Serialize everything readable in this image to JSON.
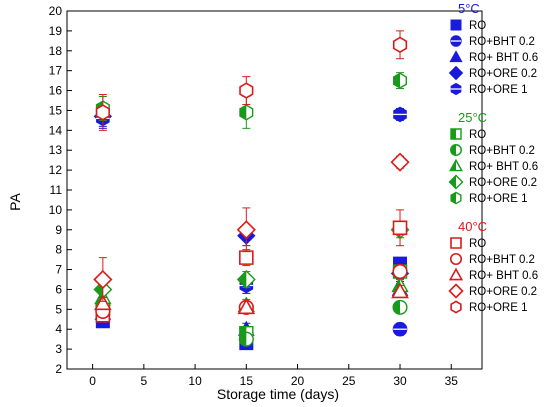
{
  "chart_data": {
    "type": "scatter",
    "xlabel": "Storage time (days)",
    "ylabel": "PA",
    "xlim": [
      -2.5,
      38
    ],
    "ylim": [
      2,
      20
    ],
    "xticks": [
      "0",
      "5",
      "10",
      "15",
      "20",
      "25",
      "30",
      "35"
    ],
    "xtick_values": [
      0,
      5,
      10,
      15,
      20,
      25,
      30,
      35
    ],
    "yticks": [
      "2",
      "3",
      "4",
      "5",
      "6",
      "7",
      "8",
      "9",
      "10",
      "11",
      "12",
      "13",
      "14",
      "15",
      "16",
      "17",
      "18",
      "19",
      "20"
    ],
    "ytick_values": [
      2,
      3,
      4,
      5,
      6,
      7,
      8,
      9,
      10,
      11,
      12,
      13,
      14,
      15,
      16,
      17,
      18,
      19,
      20
    ],
    "groups": [
      {
        "title": "5°C",
        "color": "#1a1adc",
        "style": "solid",
        "series": [
          {
            "name": "RO",
            "marker": "square",
            "x": [
              1,
              15,
              30
            ],
            "y": [
              4.4,
              3.3,
              7.3
            ],
            "err": [
              0.25,
              0.3,
              0.3
            ]
          },
          {
            "name": "RO+BHT 0.2",
            "marker": "circle",
            "x": [
              1,
              15,
              30
            ],
            "y": [
              4.7,
              3.5,
              4.0
            ],
            "err": [
              0.3,
              0.3,
              0.3
            ]
          },
          {
            "name": "RO+ BHT 0.6",
            "marker": "triangle",
            "x": [
              1,
              15,
              30
            ],
            "y": [
              4.8,
              4.0,
              6.0
            ],
            "err": [
              0.3,
              0.3,
              0.3
            ]
          },
          {
            "name": "RO+ORE 0.2",
            "marker": "diamond",
            "x": [
              1,
              15,
              30
            ],
            "y": [
              14.7,
              8.7,
              6.8
            ],
            "err": [
              0.5,
              0.5,
              0.4
            ]
          },
          {
            "name": "RO+ORE 1",
            "marker": "hexagon",
            "x": [
              1,
              15,
              30
            ],
            "y": [
              14.6,
              6.2,
              14.8
            ],
            "err": [
              0.5,
              0.4,
              0.3
            ]
          }
        ]
      },
      {
        "title": "25°C",
        "color": "#1a9a1a",
        "style": "half",
        "series": [
          {
            "name": "RO",
            "marker": "square",
            "x": [
              1,
              15,
              30
            ],
            "y": [
              5.0,
              3.8,
              6.9
            ],
            "err": [
              0.3,
              0.3,
              0.3
            ]
          },
          {
            "name": "RO+BHT 0.2",
            "marker": "circle",
            "x": [
              1,
              15,
              30
            ],
            "y": [
              5.2,
              3.5,
              5.1
            ],
            "err": [
              0.3,
              0.3,
              0.3
            ]
          },
          {
            "name": "RO+ BHT 0.6",
            "marker": "triangle",
            "x": [
              1,
              15,
              30
            ],
            "y": [
              5.6,
              5.2,
              6.2
            ],
            "err": [
              0.3,
              0.3,
              0.3
            ]
          },
          {
            "name": "RO+ORE 0.2",
            "marker": "diamond",
            "x": [
              1,
              15,
              30
            ],
            "y": [
              6.0,
              6.5,
              9.0
            ],
            "err": [
              0.4,
              0.4,
              0.4
            ]
          },
          {
            "name": "RO+ORE 1",
            "marker": "hexagon",
            "x": [
              1,
              15,
              30
            ],
            "y": [
              15.1,
              14.9,
              16.5
            ],
            "err": [
              0.6,
              0.8,
              0.4
            ]
          }
        ]
      },
      {
        "title": "40°C",
        "color": "#dc1a1a",
        "style": "open",
        "series": [
          {
            "name": "RO",
            "marker": "square",
            "x": [
              1,
              15,
              30
            ],
            "y": [
              4.7,
              7.6,
              9.1
            ],
            "err": [
              0.3,
              0.4,
              0.9
            ]
          },
          {
            "name": "RO+BHT 0.2",
            "marker": "circle",
            "x": [
              1,
              15,
              30
            ],
            "y": [
              4.9,
              5.1,
              6.9
            ],
            "err": [
              0.3,
              0.3,
              0.3
            ]
          },
          {
            "name": "RO+ BHT 0.6",
            "marker": "triangle",
            "x": [
              1,
              15,
              30
            ],
            "y": [
              5.3,
              5.1,
              5.9
            ],
            "err": [
              0.3,
              0.3,
              0.3
            ]
          },
          {
            "name": "RO+ORE 0.2",
            "marker": "diamond",
            "x": [
              1,
              15,
              30
            ],
            "y": [
              6.5,
              9.0,
              12.4
            ],
            "err": [
              1.1,
              1.1,
              0.3
            ]
          },
          {
            "name": "RO+ORE 1",
            "marker": "hexagon",
            "x": [
              1,
              15,
              30
            ],
            "y": [
              14.9,
              16.0,
              18.3
            ],
            "err": [
              0.9,
              0.7,
              0.7
            ]
          }
        ]
      }
    ],
    "legend_position": "top-right, inside plot"
  }
}
